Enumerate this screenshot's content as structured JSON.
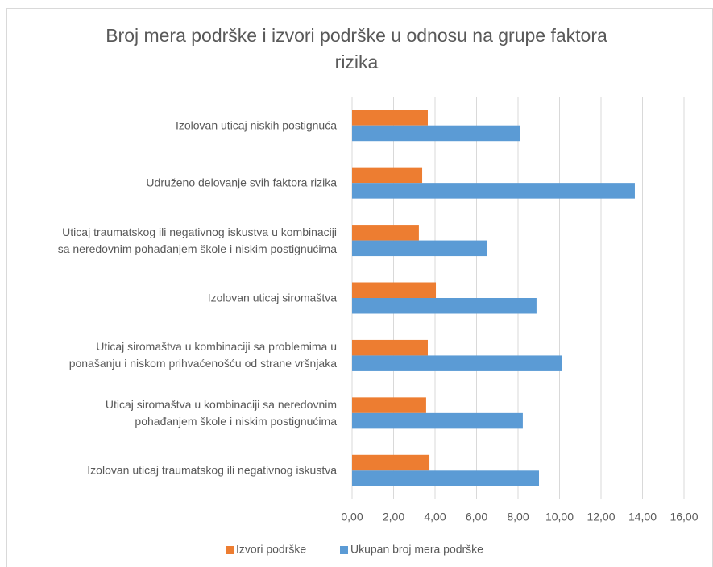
{
  "chart_data": {
    "type": "hbar",
    "title": "Broj mera podrške i izvori podrške u odnosu na grupe faktora\nrizika",
    "categories": [
      "Izolovan uticaj niskih postignuća",
      "Udruženo delovanje svih faktora rizika",
      "Uticaj traumatskog ili negativnog iskustva u kombinaciji\nsa neredovnim pohađanjem škole i niskim postignućima",
      "Izolovan uticaj siromaštva",
      "Uticaj siromaštva u kombinaciji sa problemima u\nponašanju i niskom prihvaćenošću od strane vršnjaka",
      "Uticaj siromaštva u kombinaciji sa neredovnim\npohađanjem škole i niskim postignućima",
      "Izolovan uticaj traumatskog ili negativnog iskustva"
    ],
    "series": [
      {
        "name": "Izvori podrške",
        "color": "#ed7d31",
        "values": [
          3.65,
          3.38,
          3.22,
          4.04,
          3.65,
          3.57,
          3.73
        ]
      },
      {
        "name": "Ukupan broj mera podrške",
        "color": "#5b9bd5",
        "values": [
          8.08,
          13.63,
          6.52,
          8.89,
          10.1,
          8.23,
          9.01
        ]
      }
    ],
    "xlim": [
      0,
      16
    ],
    "xticks": [
      {
        "value": 0,
        "label": "0,00"
      },
      {
        "value": 2,
        "label": "2,00"
      },
      {
        "value": 4,
        "label": "4,00"
      },
      {
        "value": 6,
        "label": "6,00"
      },
      {
        "value": 8,
        "label": "8,00"
      },
      {
        "value": 10,
        "label": "10,00"
      },
      {
        "value": 12,
        "label": "12,00"
      },
      {
        "value": 14,
        "label": "14,00"
      },
      {
        "value": 16,
        "label": "16,00"
      }
    ],
    "grid": true,
    "legend": "bottom"
  }
}
